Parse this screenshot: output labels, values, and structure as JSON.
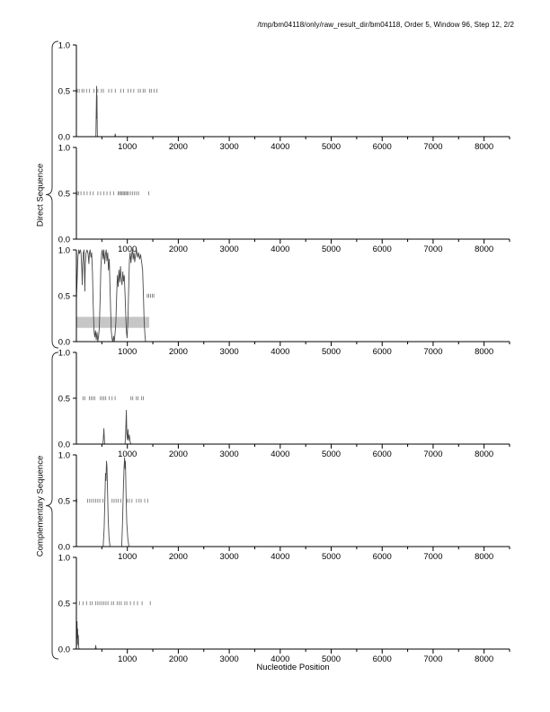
{
  "title": "/tmp/bm04118/only/raw_result_dir/bm04118, Order 5, Window 96, Step 12, 2/2",
  "xlabel": "Nucleotide Position",
  "group_labels": {
    "direct": "Direct Sequence",
    "complementary": "Complementary Sequence"
  },
  "colors": {
    "curve": "#4a4a4a",
    "marks": "#8c8c8c",
    "band": "#c6c6c6",
    "axis": "#000000",
    "brace": "#333333"
  },
  "chart_data": {
    "type": "line",
    "title": "/tmp/bm04118/only/raw_result_dir/bm04118, Order 5, Window 96, Step 12, 2/2",
    "xlabel": "Nucleotide Position",
    "x_range": [
      0,
      8500
    ],
    "y_range": [
      0,
      1
    ],
    "x_major_ticks": [
      1000,
      2000,
      3000,
      4000,
      5000,
      6000,
      7000,
      8000
    ],
    "x_minor_step": 500,
    "y_ticks": [
      {
        "v": 0.0,
        "label": "0.0"
      },
      {
        "v": 0.5,
        "label": "0.5"
      },
      {
        "v": 1.0,
        "label": "1.0"
      }
    ],
    "grid": false,
    "legend": "none",
    "panels": [
      {
        "name": "direct-frame-1",
        "group": "Direct Sequence",
        "curve": [
          [
            0,
            0
          ],
          [
            383,
            0
          ],
          [
            390,
            0.28
          ],
          [
            396,
            0.55
          ],
          [
            400,
            0.2
          ],
          [
            404,
            0.45
          ],
          [
            409,
            0.1
          ],
          [
            413,
            0
          ],
          [
            755,
            0
          ],
          [
            762,
            0.03
          ],
          [
            770,
            0
          ],
          [
            8500,
            0
          ]
        ],
        "half_marks": [
          18,
          55,
          110,
          145,
          200,
          255,
          345,
          420,
          490,
          530,
          635,
          690,
          765,
          870,
          925,
          1015,
          1070,
          1125,
          1215,
          1255,
          1310,
          1345,
          1435,
          1470,
          1525,
          1580
        ]
      },
      {
        "name": "direct-frame-2",
        "group": "Direct Sequence",
        "curve": [
          [
            0,
            0
          ],
          [
            8500,
            0
          ]
        ],
        "half_marks": [
          20,
          45,
          90,
          150,
          210,
          270,
          330,
          420,
          475,
          540,
          600,
          665,
          730,
          820,
          845,
          870,
          895,
          920,
          945,
          970,
          995,
          1020,
          1060,
          1100,
          1140,
          1180,
          1220,
          1420
        ]
      },
      {
        "name": "direct-frame-3",
        "group": "Direct Sequence",
        "band": {
          "x0": 0,
          "x1": 1430,
          "y0": 0.15,
          "y1": 0.27
        },
        "curve": [
          [
            0,
            0.45
          ],
          [
            15,
            0.7
          ],
          [
            30,
            0.92
          ],
          [
            45,
            1.0
          ],
          [
            60,
            0.96
          ],
          [
            75,
            1.0
          ],
          [
            90,
            0.97
          ],
          [
            105,
            0.8
          ],
          [
            115,
            0.62
          ],
          [
            125,
            0.85
          ],
          [
            135,
            0.97
          ],
          [
            150,
            1.0
          ],
          [
            165,
            0.55
          ],
          [
            175,
            0.85
          ],
          [
            190,
            0.97
          ],
          [
            210,
            1.0
          ],
          [
            230,
            0.96
          ],
          [
            245,
            0.85
          ],
          [
            255,
            0.97
          ],
          [
            270,
            1.0
          ],
          [
            285,
            0.92
          ],
          [
            300,
            0.97
          ],
          [
            315,
            0.75
          ],
          [
            330,
            0.4
          ],
          [
            345,
            0.12
          ],
          [
            360,
            0.05
          ],
          [
            375,
            0.12
          ],
          [
            390,
            0.02
          ],
          [
            405,
            0.1
          ],
          [
            420,
            0.0
          ],
          [
            435,
            0.06
          ],
          [
            450,
            0.15
          ],
          [
            465,
            0.45
          ],
          [
            480,
            0.8
          ],
          [
            495,
            0.97
          ],
          [
            510,
            1.0
          ],
          [
            525,
            0.9
          ],
          [
            540,
            1.0
          ],
          [
            555,
            0.85
          ],
          [
            570,
            0.95
          ],
          [
            585,
            1.0
          ],
          [
            600,
            0.88
          ],
          [
            615,
            0.97
          ],
          [
            630,
            0.78
          ],
          [
            645,
            0.9
          ],
          [
            660,
            0.6
          ],
          [
            672,
            0.35
          ],
          [
            685,
            0.12
          ],
          [
            700,
            0.03
          ],
          [
            715,
            0.0
          ],
          [
            730,
            0.06
          ],
          [
            745,
            0.0
          ],
          [
            760,
            0.1
          ],
          [
            775,
            0.2
          ],
          [
            790,
            0.5
          ],
          [
            805,
            0.72
          ],
          [
            820,
            0.6
          ],
          [
            835,
            0.78
          ],
          [
            850,
            0.65
          ],
          [
            865,
            0.82
          ],
          [
            880,
            0.68
          ],
          [
            895,
            0.62
          ],
          [
            910,
            0.76
          ],
          [
            925,
            0.66
          ],
          [
            940,
            0.72
          ],
          [
            955,
            0.5
          ],
          [
            968,
            0.3
          ],
          [
            980,
            0.12
          ],
          [
            995,
            0.04
          ],
          [
            1010,
            0.22
          ],
          [
            1025,
            0.55
          ],
          [
            1040,
            0.88
          ],
          [
            1055,
            0.97
          ],
          [
            1070,
            0.86
          ],
          [
            1085,
            0.95
          ],
          [
            1100,
            1.0
          ],
          [
            1115,
            0.9
          ],
          [
            1130,
            0.97
          ],
          [
            1145,
            0.87
          ],
          [
            1160,
            0.94
          ],
          [
            1180,
            1.0
          ],
          [
            1200,
            0.92
          ],
          [
            1220,
            0.97
          ],
          [
            1240,
            0.9
          ],
          [
            1260,
            0.95
          ],
          [
            1280,
            0.87
          ],
          [
            1300,
            0.78
          ],
          [
            1315,
            0.5
          ],
          [
            1330,
            0.22
          ],
          [
            1345,
            0.07
          ],
          [
            1358,
            0
          ],
          [
            8500,
            0
          ]
        ],
        "half_marks": [
          1390,
          1420,
          1455,
          1490,
          1520
        ]
      },
      {
        "name": "complementary-frame-1",
        "group": "Complementary Sequence",
        "curve": [
          [
            0,
            0
          ],
          [
            520,
            0
          ],
          [
            530,
            0.08
          ],
          [
            540,
            0.17
          ],
          [
            548,
            0.06
          ],
          [
            556,
            0
          ],
          [
            955,
            0
          ],
          [
            968,
            0.15
          ],
          [
            980,
            0.37
          ],
          [
            990,
            0.12
          ],
          [
            1000,
            0.05
          ],
          [
            1012,
            0.16
          ],
          [
            1022,
            0.04
          ],
          [
            1038,
            0.1
          ],
          [
            1052,
            0.03
          ],
          [
            1068,
            0
          ],
          [
            8500,
            0
          ]
        ],
        "half_marks": [
          130,
          165,
          255,
          290,
          325,
          360,
          470,
          505,
          540,
          575,
          645,
          700,
          760,
          1070,
          1105,
          1175,
          1210,
          1280,
          1315
        ]
      },
      {
        "name": "complementary-frame-2",
        "group": "Complementary Sequence",
        "curve": [
          [
            0,
            0
          ],
          [
            525,
            0
          ],
          [
            545,
            0.2
          ],
          [
            560,
            0.55
          ],
          [
            572,
            0.8
          ],
          [
            580,
            0.72
          ],
          [
            590,
            0.93
          ],
          [
            600,
            0.88
          ],
          [
            612,
            0.6
          ],
          [
            625,
            0.3
          ],
          [
            640,
            0.1
          ],
          [
            660,
            0
          ],
          [
            888,
            0
          ],
          [
            905,
            0.25
          ],
          [
            920,
            0.6
          ],
          [
            935,
            0.85
          ],
          [
            945,
            0.97
          ],
          [
            955,
            0.85
          ],
          [
            963,
            0.93
          ],
          [
            975,
            0.55
          ],
          [
            990,
            0.25
          ],
          [
            1010,
            0.08
          ],
          [
            1032,
            0
          ],
          [
            8500,
            0
          ]
        ],
        "half_marks": [
          8,
          220,
          260,
          300,
          340,
          380,
          420,
          460,
          520,
          700,
          740,
          780,
          820,
          870,
          1000,
          1040,
          1090,
          1180,
          1230,
          1270,
          1340,
          1400
        ]
      },
      {
        "name": "complementary-frame-3",
        "group": "Complementary Sequence",
        "curve": [
          [
            0,
            0
          ],
          [
            5,
            0.06
          ],
          [
            12,
            0.3
          ],
          [
            18,
            0.12
          ],
          [
            24,
            0.22
          ],
          [
            30,
            0.05
          ],
          [
            38,
            0.15
          ],
          [
            45,
            0.02
          ],
          [
            55,
            0
          ],
          [
            370,
            0
          ],
          [
            380,
            0.04
          ],
          [
            390,
            0
          ],
          [
            8500,
            0
          ]
        ],
        "half_marks": [
          60,
          130,
          200,
          270,
          310,
          380,
          420,
          460,
          500,
          540,
          580,
          620,
          690,
          730,
          800,
          840,
          880,
          950,
          990,
          1060,
          1130,
          1200,
          1290,
          1450
        ]
      }
    ]
  }
}
